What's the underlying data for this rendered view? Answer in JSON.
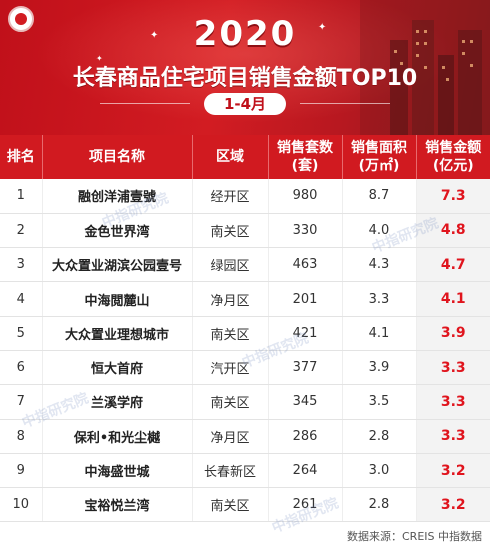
{
  "header": {
    "year": "2020",
    "title": "长春商品住宅项目销售金额TOP10",
    "period": "1-4月"
  },
  "table": {
    "columns": [
      {
        "line1": "排名",
        "line2": ""
      },
      {
        "line1": "项目名称",
        "line2": ""
      },
      {
        "line1": "区域",
        "line2": ""
      },
      {
        "line1": "销售套数",
        "line2": "(套)"
      },
      {
        "line1": "销售面积",
        "line2": "(万㎡)"
      },
      {
        "line1": "销售金额",
        "line2": "(亿元)"
      }
    ],
    "rows": [
      {
        "rank": "1",
        "name": "融创洋浦壹號",
        "district": "经开区",
        "units": "980",
        "area": "8.7",
        "amount": "7.3"
      },
      {
        "rank": "2",
        "name": "金色世界湾",
        "district": "南关区",
        "units": "330",
        "area": "4.0",
        "amount": "4.8"
      },
      {
        "rank": "3",
        "name": "大众置业湖滨公园壹号",
        "district": "绿园区",
        "units": "463",
        "area": "4.3",
        "amount": "4.7"
      },
      {
        "rank": "4",
        "name": "中海閲麓山",
        "district": "净月区",
        "units": "201",
        "area": "3.3",
        "amount": "4.1"
      },
      {
        "rank": "5",
        "name": "大众置业理想城市",
        "district": "南关区",
        "units": "421",
        "area": "4.1",
        "amount": "3.9"
      },
      {
        "rank": "6",
        "name": "恒大首府",
        "district": "汽开区",
        "units": "377",
        "area": "3.9",
        "amount": "3.3"
      },
      {
        "rank": "7",
        "name": "兰溪学府",
        "district": "南关区",
        "units": "345",
        "area": "3.5",
        "amount": "3.3"
      },
      {
        "rank": "8",
        "name": "保利•和光尘樾",
        "district": "净月区",
        "units": "286",
        "area": "2.8",
        "amount": "3.3"
      },
      {
        "rank": "9",
        "name": "中海盛世城",
        "district": "长春新区",
        "units": "264",
        "area": "3.0",
        "amount": "3.2"
      },
      {
        "rank": "10",
        "name": "宝裕悦兰湾",
        "district": "南关区",
        "units": "261",
        "area": "2.8",
        "amount": "3.2"
      }
    ]
  },
  "watermark": "中指研究院",
  "source": "数据来源：CREIS 中指数据",
  "colors": {
    "header_red": "#d11a20",
    "amount_red": "#e0141d"
  }
}
